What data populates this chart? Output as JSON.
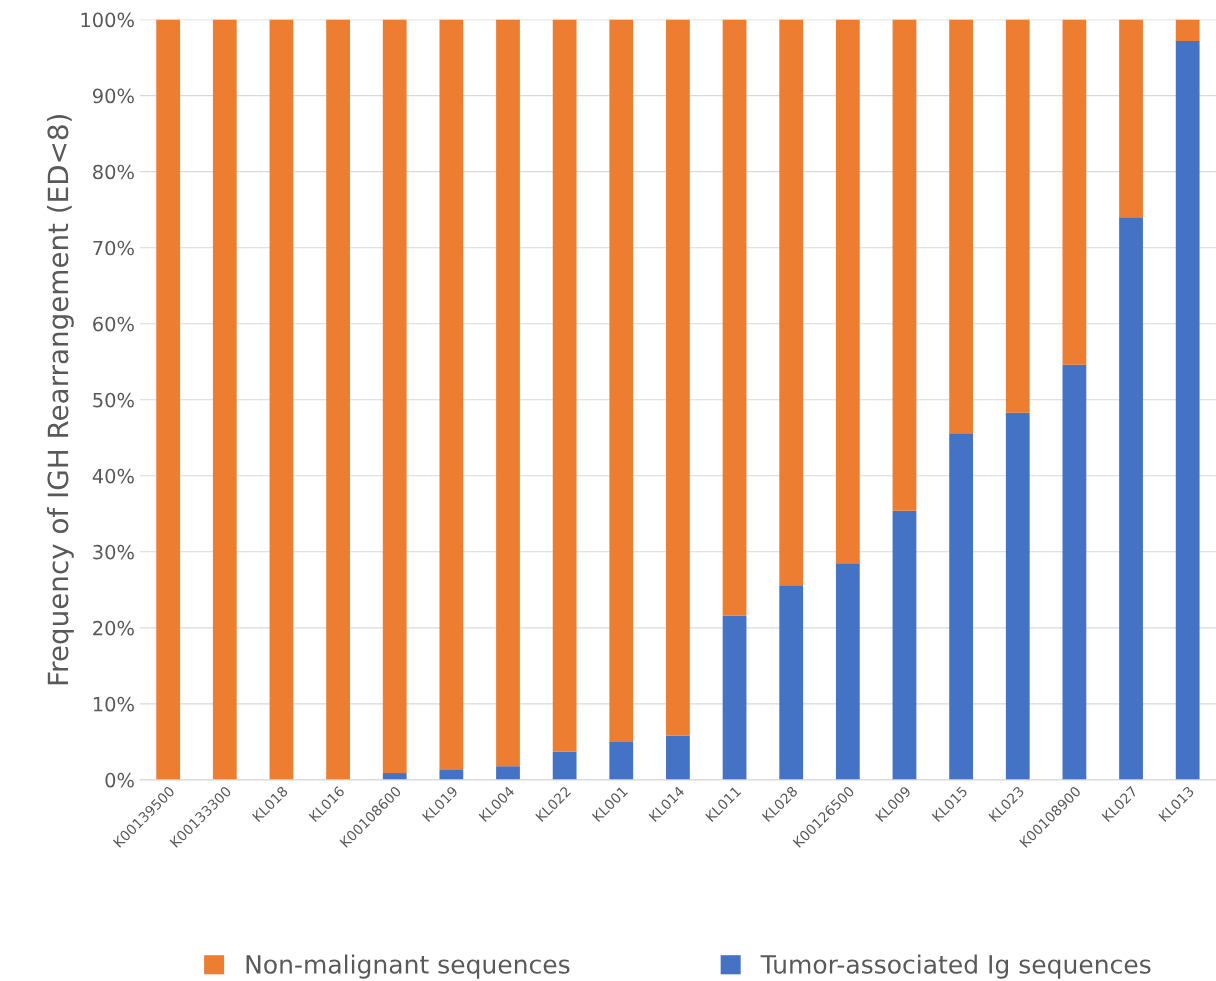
{
  "chart_data": {
    "type": "bar",
    "stacked": true,
    "ylabel": "Frequency of IGH Rearrangement (ED<8)",
    "categories": [
      "K00139500",
      "K00133300",
      "KL018",
      "KL016",
      "K00108600",
      "KL019",
      "KL004",
      "KL022",
      "KL001",
      "KL014",
      "KL011",
      "KL028",
      "K00126500",
      "KL009",
      "KL015",
      "KL023",
      "K00108900",
      "KL027",
      "KL013"
    ],
    "series": [
      {
        "name": "Tumor-associated Ig sequences",
        "color": "#4472c4",
        "values": [
          0,
          0,
          0,
          0,
          0.9,
          1.3,
          1.8,
          3.7,
          5.0,
          5.8,
          21.6,
          25.6,
          28.5,
          35.4,
          45.6,
          48.3,
          54.6,
          74.0,
          97.2
        ]
      },
      {
        "name": "Non-malignant sequences",
        "color": "#ed7d31",
        "values": [
          100,
          100,
          100,
          100,
          99.1,
          98.7,
          98.2,
          96.3,
          95.0,
          94.2,
          78.4,
          74.4,
          71.5,
          64.6,
          54.4,
          51.7,
          45.4,
          26.0,
          2.8
        ]
      }
    ],
    "ylim": [
      0,
      100
    ],
    "yticks": [
      {
        "value": 0,
        "label": "0%"
      },
      {
        "value": 10,
        "label": "10%"
      },
      {
        "value": 20,
        "label": "20%"
      },
      {
        "value": 30,
        "label": "30%"
      },
      {
        "value": 40,
        "label": "40%"
      },
      {
        "value": 50,
        "label": "50%"
      },
      {
        "value": 60,
        "label": "60%"
      },
      {
        "value": 70,
        "label": "70%"
      },
      {
        "value": 80,
        "label": "80%"
      },
      {
        "value": 90,
        "label": "90%"
      },
      {
        "value": 100,
        "label": "100%"
      }
    ],
    "grid": "y",
    "legend": "bottom"
  }
}
